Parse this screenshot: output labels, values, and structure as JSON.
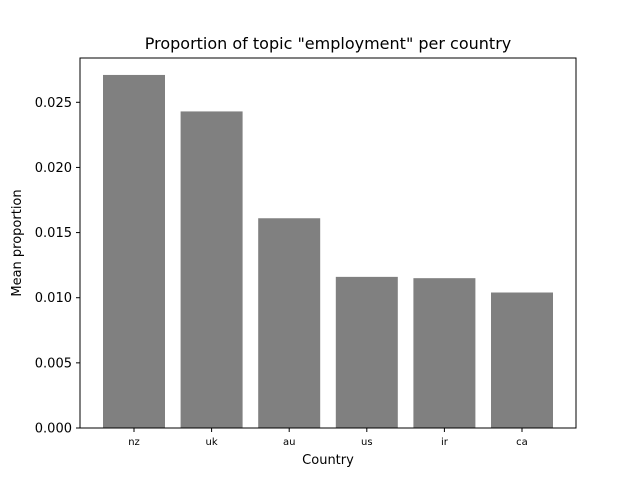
{
  "chart_data": {
    "type": "bar",
    "title": "Proportion of topic \"employment\" per country",
    "xlabel": "Country",
    "ylabel": "Mean proportion",
    "categories": [
      "nz",
      "uk",
      "au",
      "us",
      "ir",
      "ca"
    ],
    "values": [
      0.0271,
      0.0243,
      0.0161,
      0.0116,
      0.0115,
      0.0104
    ],
    "ylim": [
      0,
      0.0284
    ],
    "yticks": [
      0.0,
      0.005,
      0.01,
      0.015,
      0.02,
      0.025
    ],
    "ytick_labels": [
      "0.000",
      "0.005",
      "0.010",
      "0.015",
      "0.020",
      "0.025"
    ],
    "bar_color": "#808080",
    "grid": false,
    "legend": "none"
  }
}
